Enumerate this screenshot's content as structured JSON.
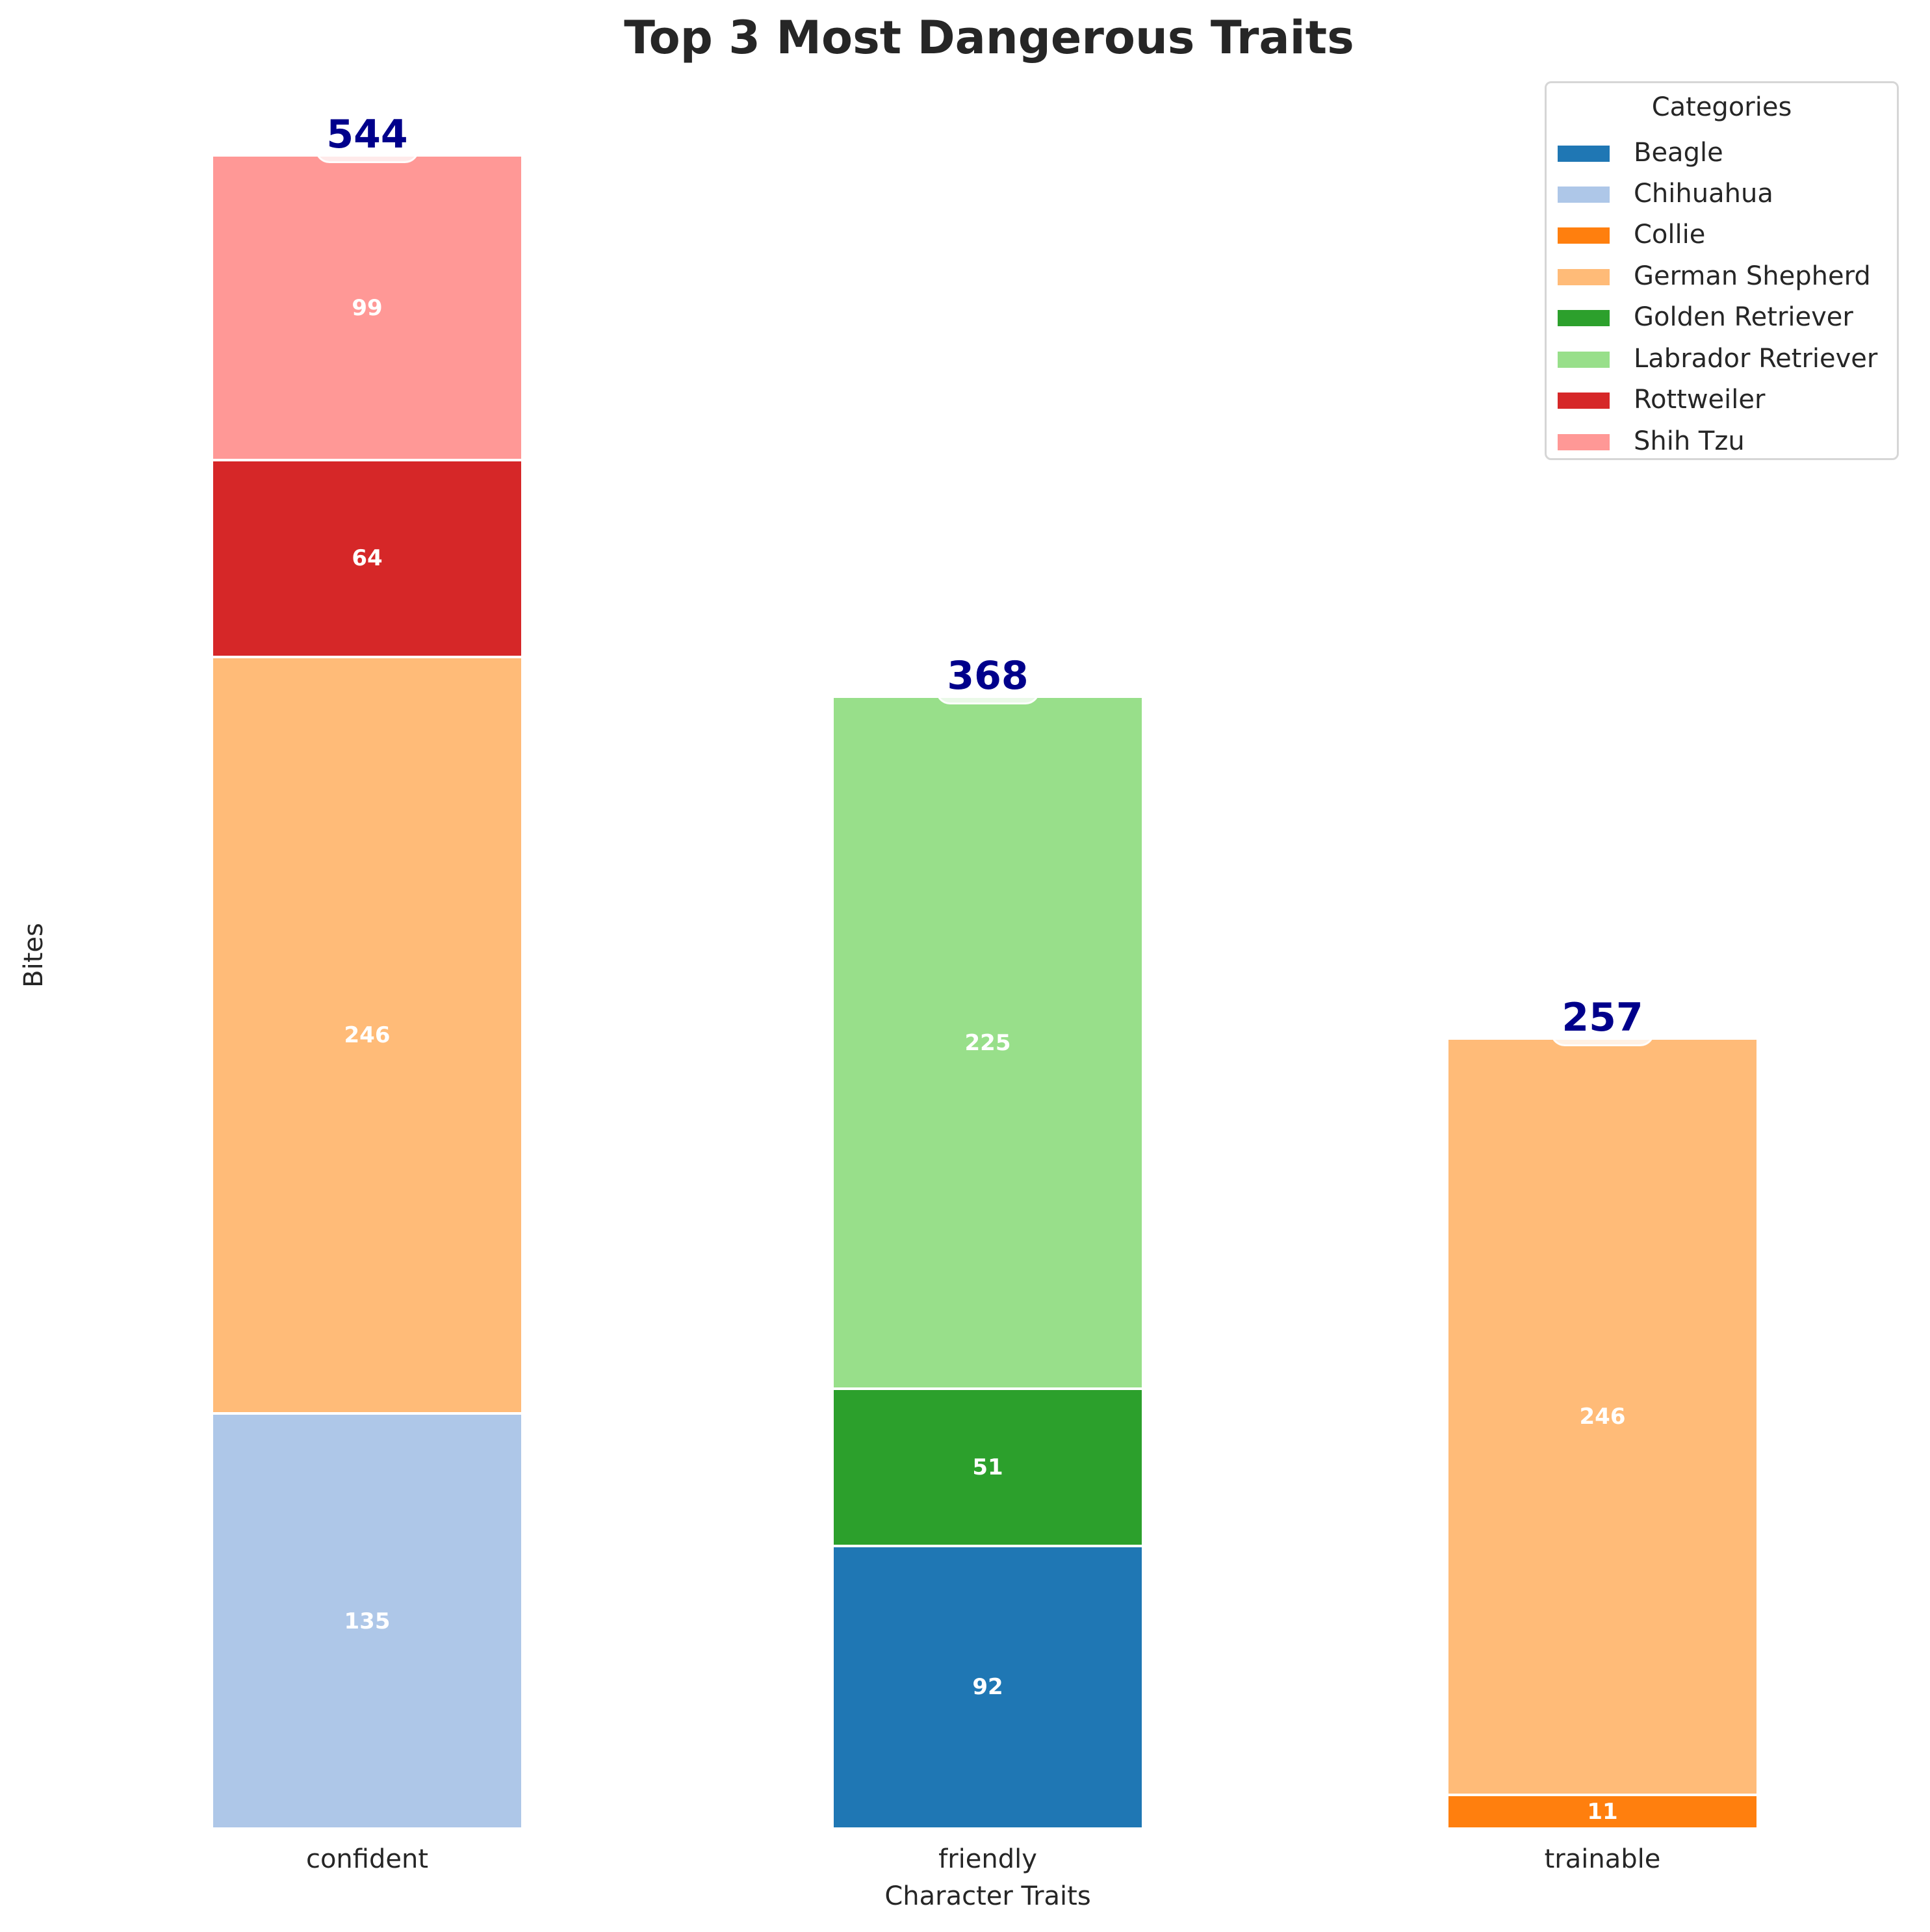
{
  "chart": {
    "title": "Top 3 Most Dangerous Traits",
    "xlabel": "Character Traits",
    "ylabel": "Bites",
    "legend_title": "Categories"
  },
  "legend": [
    {
      "label": "Beagle",
      "color": "#1f77b4"
    },
    {
      "label": "Chihuahua",
      "color": "#aec7e8"
    },
    {
      "label": "Collie",
      "color": "#ff7f0e"
    },
    {
      "label": "German Shepherd",
      "color": "#ffbb78"
    },
    {
      "label": "Golden Retriever",
      "color": "#2ca02c"
    },
    {
      "label": "Labrador Retriever",
      "color": "#98df8a"
    },
    {
      "label": "Rottweiler",
      "color": "#d62728"
    },
    {
      "label": "Shih Tzu",
      "color": "#ff9896"
    }
  ],
  "bars": [
    {
      "category": "confident",
      "total": "544",
      "segments": [
        {
          "breed": "Chihuahua",
          "value": 135,
          "label": "135",
          "color": "#aec7e8"
        },
        {
          "breed": "German Shepherd",
          "value": 246,
          "label": "246",
          "color": "#ffbb78"
        },
        {
          "breed": "Rottweiler",
          "value": 64,
          "label": "64",
          "color": "#d62728"
        },
        {
          "breed": "Shih Tzu",
          "value": 99,
          "label": "99",
          "color": "#ff9896"
        }
      ]
    },
    {
      "category": "friendly",
      "total": "368",
      "segments": [
        {
          "breed": "Beagle",
          "value": 92,
          "label": "92",
          "color": "#1f77b4"
        },
        {
          "breed": "Golden Retriever",
          "value": 51,
          "label": "51",
          "color": "#2ca02c"
        },
        {
          "breed": "Labrador Retriever",
          "value": 225,
          "label": "225",
          "color": "#98df8a"
        }
      ]
    },
    {
      "category": "trainable",
      "total": "257",
      "segments": [
        {
          "breed": "Collie",
          "value": 11,
          "label": "11",
          "color": "#ff7f0e"
        },
        {
          "breed": "German Shepherd",
          "value": 246,
          "label": "246",
          "color": "#ffbb78"
        }
      ]
    }
  ],
  "colors": {
    "total_label": "#00008b",
    "text": "#262626",
    "legend_border": "#d6d6d6"
  },
  "chart_data": {
    "type": "bar",
    "stacked": true,
    "title": "Top 3 Most Dangerous Traits",
    "xlabel": "Character Traits",
    "ylabel": "Bites",
    "categories": [
      "confident",
      "friendly",
      "trainable"
    ],
    "series": [
      {
        "name": "Beagle",
        "color": "#1f77b4",
        "values": [
          0,
          92,
          0
        ]
      },
      {
        "name": "Chihuahua",
        "color": "#aec7e8",
        "values": [
          135,
          0,
          0
        ]
      },
      {
        "name": "Collie",
        "color": "#ff7f0e",
        "values": [
          0,
          0,
          11
        ]
      },
      {
        "name": "German Shepherd",
        "color": "#ffbb78",
        "values": [
          246,
          0,
          246
        ]
      },
      {
        "name": "Golden Retriever",
        "color": "#2ca02c",
        "values": [
          0,
          51,
          0
        ]
      },
      {
        "name": "Labrador Retriever",
        "color": "#98df8a",
        "values": [
          0,
          225,
          0
        ]
      },
      {
        "name": "Rottweiler",
        "color": "#d62728",
        "values": [
          64,
          0,
          0
        ]
      },
      {
        "name": "Shih Tzu",
        "color": "#ff9896",
        "values": [
          99,
          0,
          0
        ]
      }
    ],
    "totals": [
      544,
      368,
      257
    ],
    "legend": {
      "title": "Categories",
      "position": "upper right"
    },
    "grid": false,
    "y_axis_ticks_visible": false,
    "ylim": [
      0,
      544
    ]
  }
}
